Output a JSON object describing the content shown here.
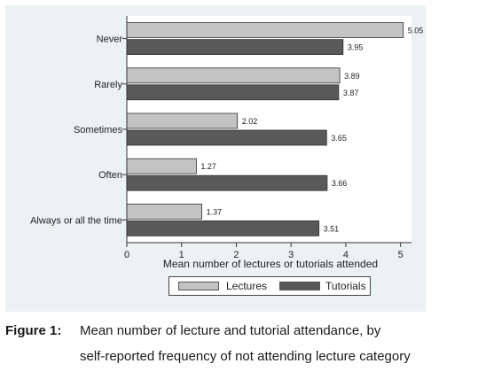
{
  "chart_data": {
    "type": "bar",
    "orientation": "horizontal",
    "categories": [
      "Never",
      "Rarely",
      "Sometimes",
      "Often",
      "Always or all the time"
    ],
    "series": [
      {
        "name": "Lectures",
        "values": [
          5.05,
          3.89,
          2.02,
          1.27,
          1.37
        ],
        "labels": [
          "5.05",
          "3.89",
          "2.02",
          "1.27",
          "1.37"
        ],
        "color": "#c3c3c3"
      },
      {
        "name": "Tutorials",
        "values": [
          3.95,
          3.87,
          3.65,
          3.66,
          3.51
        ],
        "labels": [
          "3.95",
          "3.87",
          "3.65",
          "3.66",
          "3.51"
        ],
        "color": "#595959"
      }
    ],
    "xlabel": "Mean number of lectures or tutorials attended",
    "xlim": [
      0,
      5.2
    ],
    "xticks": [
      "0",
      "1",
      "2",
      "3",
      "4",
      "5"
    ],
    "grid": false,
    "legend_position": "bottom",
    "background_color": "#eaf2f3",
    "plot_color": "#ffffff"
  },
  "caption": {
    "label": "Figure 1:",
    "line1": "Mean number of lecture and tutorial attendance, by",
    "line2": "self-reported frequency of not attending lecture category"
  }
}
